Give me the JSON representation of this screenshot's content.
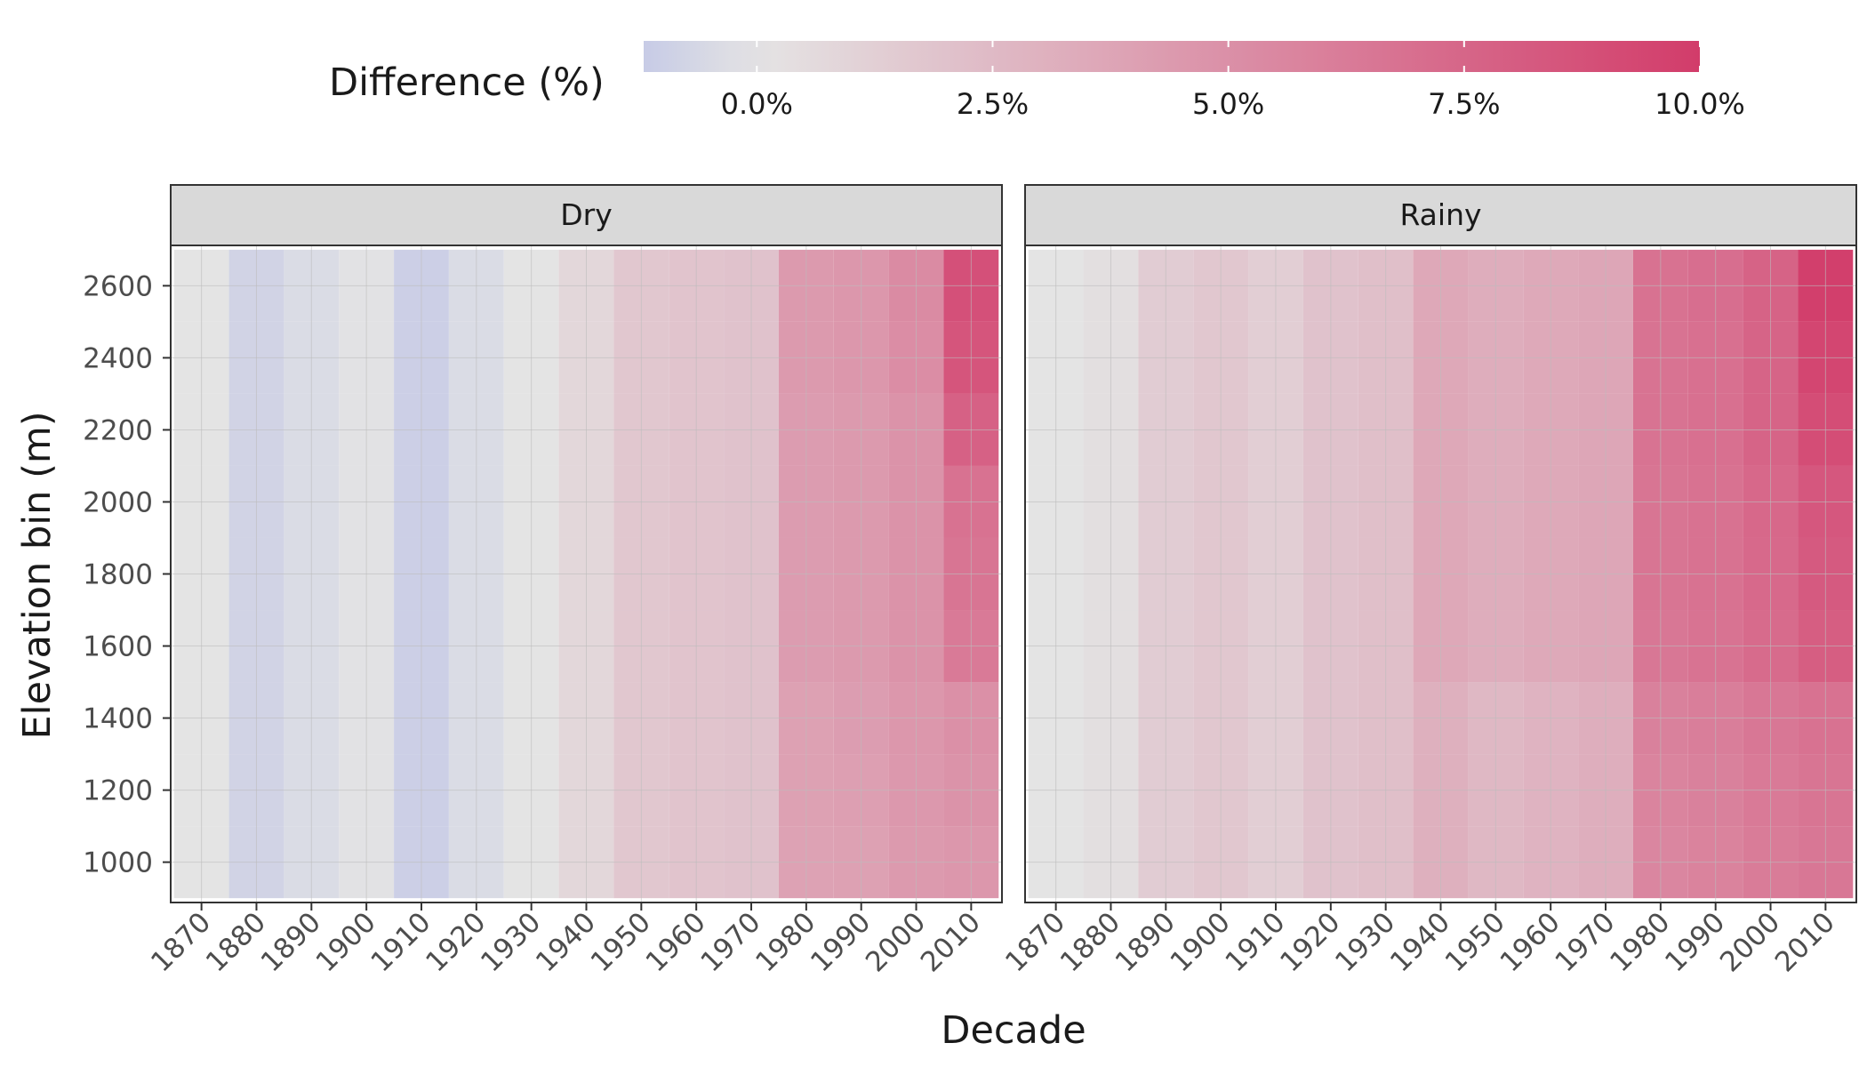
{
  "chart_data": {
    "type": "heatmap",
    "xlabel": "Decade",
    "ylabel": "Elevation bin (m)",
    "x": [
      1870,
      1880,
      1890,
      1900,
      1910,
      1920,
      1930,
      1940,
      1950,
      1960,
      1970,
      1980,
      1990,
      2000,
      2010
    ],
    "y": [
      1000,
      1200,
      1400,
      1600,
      1800,
      2000,
      2200,
      2400,
      2600
    ],
    "legend": {
      "title": "Difference (%)",
      "placement": "top",
      "range": [
        -1.2,
        10.0
      ],
      "breaks": [
        0.0,
        2.5,
        5.0,
        7.5,
        10.0
      ],
      "labels": [
        "0.0%",
        "2.5%",
        "5.0%",
        "7.5%",
        "10.0%"
      ],
      "low_color": "#c7cbe6",
      "mid_color": "#e4e4e4",
      "high_color": "#d23c6a",
      "midpoint": 0
    },
    "panels": [
      {
        "name": "Dry",
        "values": [
          [
            0.0,
            -0.8,
            -0.4,
            -0.1,
            -1.0,
            -0.4,
            0.0,
            0.8,
            1.7,
            1.9,
            2.0,
            3.9,
            4.0,
            4.4,
            4.6
          ],
          [
            0.0,
            -0.8,
            -0.4,
            -0.1,
            -1.0,
            -0.4,
            0.0,
            0.8,
            1.7,
            1.9,
            2.0,
            4.0,
            4.1,
            4.5,
            4.8
          ],
          [
            0.0,
            -0.8,
            -0.4,
            -0.1,
            -1.0,
            -0.4,
            0.0,
            0.8,
            1.7,
            1.9,
            2.0,
            4.0,
            4.2,
            4.6,
            5.0
          ],
          [
            0.0,
            -0.8,
            -0.4,
            -0.1,
            -1.0,
            -0.4,
            0.0,
            0.8,
            1.7,
            1.9,
            2.0,
            4.3,
            4.4,
            4.8,
            6.3
          ],
          [
            0.0,
            -0.8,
            -0.4,
            -0.1,
            -1.0,
            -0.4,
            0.0,
            0.8,
            1.7,
            1.9,
            2.0,
            4.3,
            4.4,
            4.8,
            6.6
          ],
          [
            0.0,
            -0.8,
            -0.4,
            -0.1,
            -1.0,
            -0.4,
            0.0,
            0.8,
            1.7,
            1.9,
            2.0,
            4.3,
            4.4,
            4.8,
            6.8
          ],
          [
            0.0,
            -0.8,
            -0.4,
            -0.1,
            -1.0,
            -0.4,
            0.0,
            0.8,
            1.7,
            1.9,
            2.0,
            4.3,
            4.4,
            4.8,
            7.8
          ],
          [
            0.0,
            -0.8,
            -0.4,
            -0.1,
            -1.0,
            -0.4,
            0.0,
            0.8,
            1.7,
            1.9,
            2.0,
            4.4,
            4.6,
            5.2,
            8.5
          ],
          [
            0.0,
            -0.8,
            -0.4,
            -0.1,
            -1.0,
            -0.4,
            0.0,
            0.8,
            1.7,
            1.9,
            2.0,
            4.4,
            4.6,
            5.3,
            8.8
          ]
        ]
      },
      {
        "name": "Rainy",
        "values": [
          [
            0.0,
            0.3,
            1.4,
            1.7,
            1.3,
            2.0,
            2.2,
            3.1,
            2.6,
            2.9,
            3.2,
            5.6,
            5.8,
            6.2,
            6.5
          ],
          [
            0.0,
            0.3,
            1.4,
            1.7,
            1.3,
            2.0,
            2.2,
            3.1,
            2.6,
            2.9,
            3.2,
            5.7,
            5.9,
            6.3,
            6.6
          ],
          [
            0.0,
            0.3,
            1.4,
            1.7,
            1.3,
            2.0,
            2.2,
            3.1,
            2.6,
            2.9,
            3.2,
            5.9,
            6.1,
            6.5,
            6.8
          ],
          [
            0.0,
            0.3,
            1.4,
            1.7,
            1.3,
            2.0,
            2.2,
            3.6,
            3.3,
            3.5,
            3.7,
            6.5,
            6.7,
            7.2,
            8.0
          ],
          [
            0.0,
            0.3,
            1.4,
            1.7,
            1.3,
            2.0,
            2.2,
            3.6,
            3.3,
            3.5,
            3.7,
            6.6,
            6.8,
            7.3,
            8.2
          ],
          [
            0.0,
            0.3,
            1.4,
            1.7,
            1.3,
            2.0,
            2.2,
            3.6,
            3.3,
            3.5,
            3.7,
            6.6,
            6.8,
            7.4,
            8.4
          ],
          [
            0.0,
            0.3,
            1.4,
            1.7,
            1.3,
            2.0,
            2.2,
            3.6,
            3.3,
            3.5,
            3.7,
            6.7,
            6.9,
            7.6,
            9.0
          ],
          [
            0.0,
            0.3,
            1.4,
            1.7,
            1.3,
            2.0,
            2.2,
            3.6,
            3.3,
            3.5,
            3.7,
            6.7,
            6.9,
            7.6,
            9.4
          ],
          [
            0.0,
            0.3,
            1.4,
            1.7,
            1.3,
            2.0,
            2.2,
            3.6,
            3.3,
            3.5,
            3.7,
            6.8,
            7.0,
            7.7,
            9.8
          ]
        ]
      }
    ]
  }
}
